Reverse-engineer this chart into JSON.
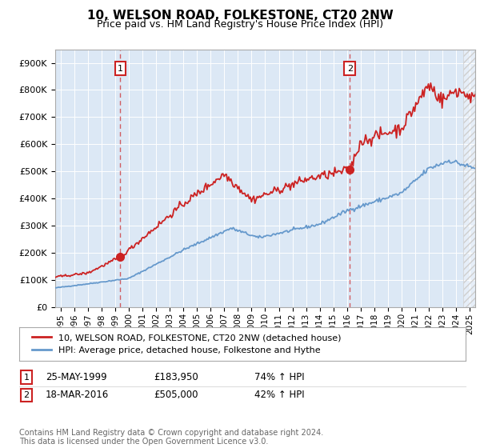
{
  "title": "10, WELSON ROAD, FOLKESTONE, CT20 2NW",
  "subtitle": "Price paid vs. HM Land Registry's House Price Index (HPI)",
  "legend_line1": "10, WELSON ROAD, FOLKESTONE, CT20 2NW (detached house)",
  "legend_line2": "HPI: Average price, detached house, Folkestone and Hythe",
  "table_rows": [
    {
      "num": "1",
      "date": "25-MAY-1999",
      "price": "£183,950",
      "change": "74% ↑ HPI"
    },
    {
      "num": "2",
      "date": "18-MAR-2016",
      "price": "£505,000",
      "change": "42% ↑ HPI"
    }
  ],
  "footnote": "Contains HM Land Registry data © Crown copyright and database right 2024.\nThis data is licensed under the Open Government Licence v3.0.",
  "sale1_x": 1999.38,
  "sale1_y": 183950,
  "sale2_x": 2016.21,
  "sale2_y": 505000,
  "vline1_x": 1999.38,
  "vline2_x": 2016.21,
  "plot_bg": "#dce8f5",
  "red_color": "#cc2222",
  "blue_color": "#6699cc",
  "ylim": [
    0,
    950000
  ],
  "xlim": [
    1994.6,
    2025.4
  ],
  "hatch_start": 2024.5,
  "xtick_years": [
    1995,
    1996,
    1997,
    1998,
    1999,
    2000,
    2001,
    2002,
    2003,
    2004,
    2005,
    2006,
    2007,
    2008,
    2009,
    2010,
    2011,
    2012,
    2013,
    2014,
    2015,
    2016,
    2017,
    2018,
    2019,
    2020,
    2021,
    2022,
    2023,
    2024,
    2025
  ],
  "yticks": [
    0,
    100000,
    200000,
    300000,
    400000,
    500000,
    600000,
    700000,
    800000,
    900000
  ]
}
